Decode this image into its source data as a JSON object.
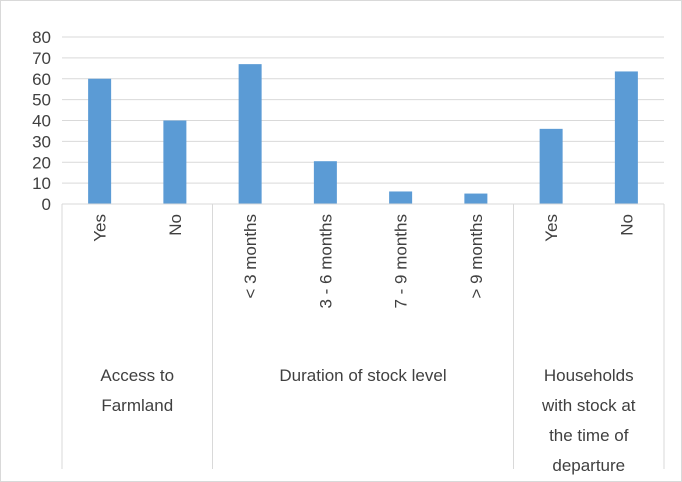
{
  "chart_data": {
    "type": "bar",
    "title": "",
    "xlabel": "",
    "ylabel": "",
    "ylim": [
      0,
      80
    ],
    "yticks": [
      0,
      10,
      20,
      30,
      40,
      50,
      60,
      70,
      80
    ],
    "grid": true,
    "legend": "none",
    "bar_color": "#5b9bd5",
    "groups": [
      {
        "label_lines": [
          "Access to",
          "Farmland"
        ],
        "categories": [
          "Yes",
          "No"
        ],
        "values": [
          60,
          40
        ]
      },
      {
        "label_lines": [
          "Duration of stock level"
        ],
        "categories": [
          "< 3 months",
          "3 - 6 months",
          "7 - 9 months",
          "> 9 months"
        ],
        "values": [
          67,
          20.5,
          6,
          5
        ]
      },
      {
        "label_lines": [
          "Households",
          "with stock at",
          "the time of",
          "departure"
        ],
        "categories": [
          "Yes",
          "No"
        ],
        "values": [
          36,
          63.5
        ]
      }
    ]
  }
}
